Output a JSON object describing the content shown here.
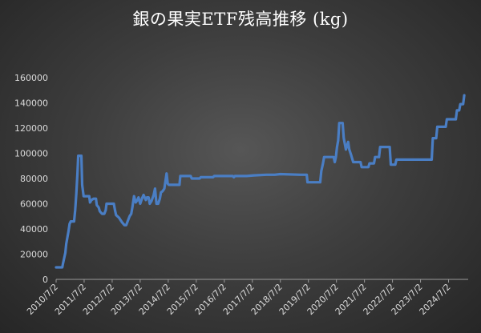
{
  "chart_data": {
    "type": "line",
    "title": "銀の果実ETF残高推移 (kg)",
    "xlabel": "",
    "ylabel": "",
    "ylim": [
      0,
      160000
    ],
    "yticks": [
      0,
      20000,
      40000,
      60000,
      80000,
      100000,
      120000,
      140000,
      160000
    ],
    "ytick_labels": [
      "0",
      "20000",
      "40000",
      "60000",
      "80000",
      "100000",
      "120000",
      "140000",
      "160000"
    ],
    "x_tick_labels": [
      "2010/7/2",
      "2011/7/2",
      "2012/7/2",
      "2013/7/2",
      "2014/7/2",
      "2015/7/2",
      "2016/7/2",
      "2017/7/2",
      "2018/7/2",
      "2019/7/2",
      "2020/7/2",
      "2021/7/2",
      "2022/7/2",
      "2023/7/2",
      "2024/7/2"
    ],
    "xlim": [
      2010.5,
      2025.2
    ],
    "grid": false,
    "legend": "none",
    "color": "#4a7ec4",
    "series": [
      {
        "values": [
          [
            2010.5,
            9500
          ],
          [
            2010.72,
            9500
          ],
          [
            2010.74,
            12000
          ],
          [
            2010.79,
            17000
          ],
          [
            2010.83,
            21000
          ],
          [
            2010.86,
            28000
          ],
          [
            2010.9,
            33000
          ],
          [
            2010.94,
            38000
          ],
          [
            2010.98,
            44000
          ],
          [
            2011.02,
            46000
          ],
          [
            2011.14,
            46000
          ],
          [
            2011.18,
            55000
          ],
          [
            2011.22,
            68000
          ],
          [
            2011.26,
            84000
          ],
          [
            2011.29,
            98000
          ],
          [
            2011.4,
            98000
          ],
          [
            2011.43,
            75000
          ],
          [
            2011.48,
            66000
          ],
          [
            2011.68,
            66000
          ],
          [
            2011.71,
            61000
          ],
          [
            2011.76,
            63000
          ],
          [
            2011.84,
            64000
          ],
          [
            2011.92,
            64000
          ],
          [
            2011.95,
            59000
          ],
          [
            2012.02,
            57000
          ],
          [
            2012.06,
            54000
          ],
          [
            2012.14,
            52000
          ],
          [
            2012.22,
            52000
          ],
          [
            2012.27,
            55000
          ],
          [
            2012.3,
            60000
          ],
          [
            2012.56,
            60000
          ],
          [
            2012.6,
            55000
          ],
          [
            2012.64,
            51000
          ],
          [
            2012.74,
            49000
          ],
          [
            2012.8,
            47000
          ],
          [
            2012.86,
            45000
          ],
          [
            2012.94,
            43000
          ],
          [
            2013.0,
            43000
          ],
          [
            2013.05,
            46000
          ],
          [
            2013.12,
            50000
          ],
          [
            2013.18,
            52000
          ],
          [
            2013.22,
            57000
          ],
          [
            2013.26,
            63000
          ],
          [
            2013.28,
            66000
          ],
          [
            2013.34,
            61000
          ],
          [
            2013.4,
            63000
          ],
          [
            2013.44,
            65000
          ],
          [
            2013.5,
            60000
          ],
          [
            2013.56,
            64000
          ],
          [
            2013.62,
            67000
          ],
          [
            2013.7,
            63000
          ],
          [
            2013.74,
            65000
          ],
          [
            2013.8,
            65000
          ],
          [
            2013.84,
            60000
          ],
          [
            2013.9,
            62000
          ],
          [
            2013.98,
            67000
          ],
          [
            2014.03,
            72000
          ],
          [
            2014.08,
            60000
          ],
          [
            2014.14,
            60000
          ],
          [
            2014.2,
            64000
          ],
          [
            2014.24,
            69000
          ],
          [
            2014.3,
            70000
          ],
          [
            2014.36,
            72000
          ],
          [
            2014.4,
            78000
          ],
          [
            2014.44,
            84000
          ],
          [
            2014.48,
            76000
          ],
          [
            2014.52,
            75000
          ],
          [
            2014.9,
            75000
          ],
          [
            2014.93,
            82000
          ],
          [
            2015.3,
            82000
          ],
          [
            2015.34,
            80000
          ],
          [
            2015.62,
            80000
          ],
          [
            2015.66,
            81000
          ],
          [
            2016.1,
            81000
          ],
          [
            2016.14,
            82000
          ],
          [
            2016.8,
            82000
          ],
          [
            2016.84,
            81000
          ],
          [
            2016.88,
            82000
          ],
          [
            2017.3,
            82000
          ],
          [
            2017.55,
            82500
          ],
          [
            2018.0,
            83000
          ],
          [
            2018.3,
            83000
          ],
          [
            2018.5,
            83500
          ],
          [
            2019.2,
            83000
          ],
          [
            2019.44,
            83000
          ],
          [
            2019.47,
            77000
          ],
          [
            2019.92,
            77000
          ],
          [
            2019.96,
            86000
          ],
          [
            2020.02,
            92000
          ],
          [
            2020.06,
            97000
          ],
          [
            2020.4,
            97000
          ],
          [
            2020.44,
            93000
          ],
          [
            2020.48,
            97000
          ],
          [
            2020.52,
            105000
          ],
          [
            2020.56,
            110000
          ],
          [
            2020.6,
            124000
          ],
          [
            2020.72,
            124000
          ],
          [
            2020.76,
            112000
          ],
          [
            2020.84,
            103000
          ],
          [
            2020.92,
            109000
          ],
          [
            2020.96,
            103000
          ],
          [
            2021.02,
            99000
          ],
          [
            2021.1,
            93000
          ],
          [
            2021.36,
            93000
          ],
          [
            2021.4,
            89000
          ],
          [
            2021.64,
            89000
          ],
          [
            2021.68,
            92000
          ],
          [
            2021.84,
            92000
          ],
          [
            2021.88,
            97000
          ],
          [
            2022.02,
            97000
          ],
          [
            2022.06,
            105000
          ],
          [
            2022.4,
            105000
          ],
          [
            2022.44,
            91000
          ],
          [
            2022.6,
            91000
          ],
          [
            2022.64,
            95000
          ],
          [
            2023.9,
            95000
          ],
          [
            2023.94,
            112000
          ],
          [
            2024.06,
            112000
          ],
          [
            2024.1,
            121000
          ],
          [
            2024.4,
            121000
          ],
          [
            2024.44,
            127000
          ],
          [
            2024.76,
            127000
          ],
          [
            2024.8,
            134000
          ],
          [
            2024.88,
            134000
          ],
          [
            2024.92,
            139000
          ],
          [
            2025.02,
            139000
          ],
          [
            2025.06,
            146000
          ]
        ]
      }
    ]
  }
}
